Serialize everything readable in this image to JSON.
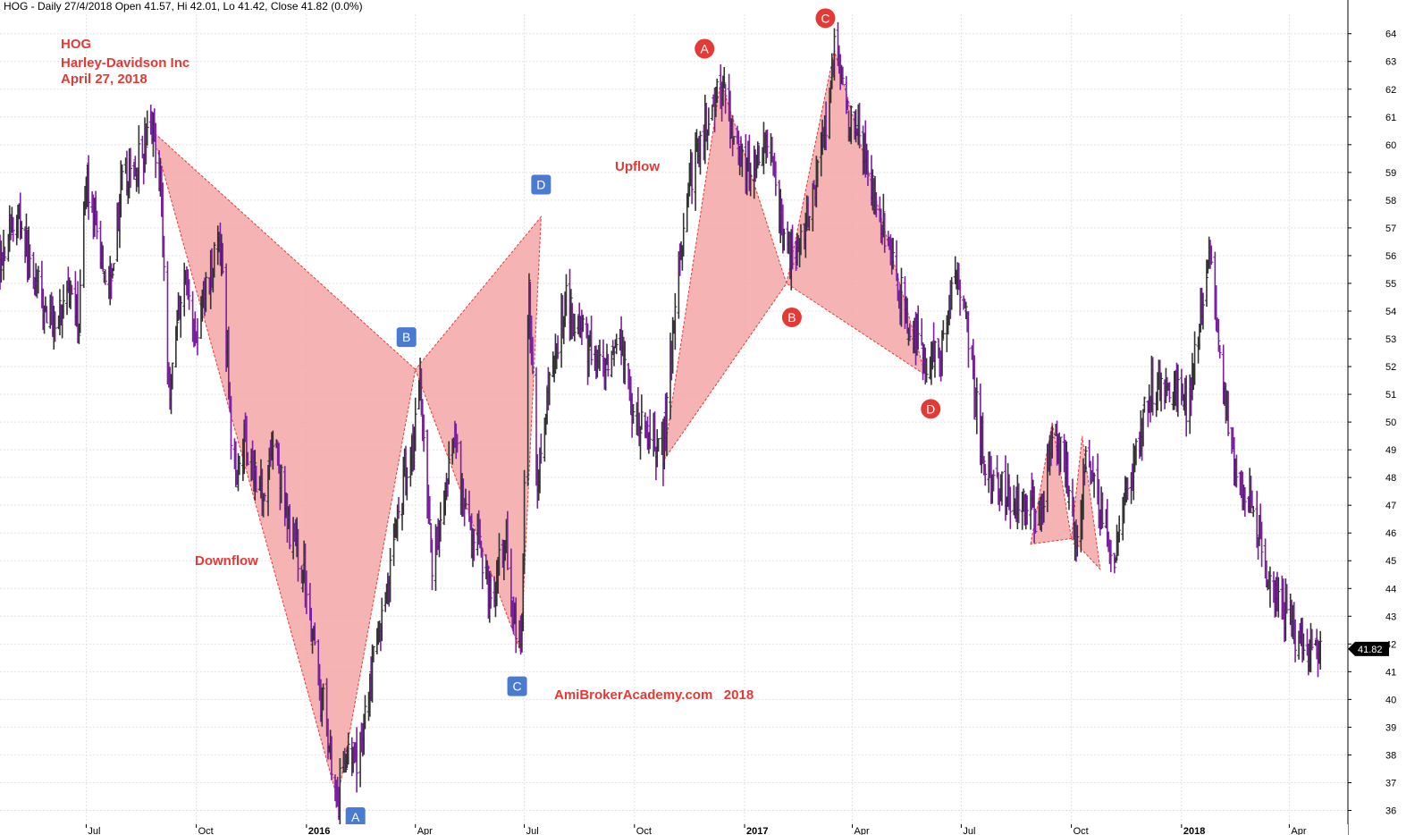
{
  "header": "HOG - Daily 27/4/2018 Open 41.57, Hi 42.01, Lo 41.42, Close 41.82 (0.0%)",
  "legend": {
    "symbol": "HOG",
    "company": "Harley-Davidson Inc",
    "date": "April 27, 2018"
  },
  "annotations": {
    "downflow": "Downflow",
    "upflow": "Upflow",
    "watermark": "AmiBrokerAcademy.com   2018"
  },
  "colors": {
    "price_bar": "#7b1fa2",
    "pattern_fill": "#f4a6a6",
    "pattern_edge": "#e53935",
    "label_blue": "#4a7bd1",
    "label_red": "#e53935",
    "text_red": "#e53935",
    "last_price_badge": "#000000"
  },
  "chart_data": {
    "type": "ohlc",
    "ylim": [
      35.5,
      64.7
    ],
    "y_ticks": [
      36,
      37,
      38,
      39,
      40,
      41,
      42,
      43,
      44,
      45,
      46,
      47,
      48,
      49,
      50,
      51,
      52,
      53,
      54,
      55,
      56,
      57,
      58,
      59,
      60,
      61,
      62,
      63,
      64
    ],
    "x_range": [
      "2015-04-20",
      "2018-05-20"
    ],
    "x_ticks": [
      {
        "date": "2015-07-01",
        "label": "Jul",
        "bold": false
      },
      {
        "date": "2015-10-01",
        "label": "Oct",
        "bold": false
      },
      {
        "date": "2016-01-01",
        "label": "2016",
        "bold": true
      },
      {
        "date": "2016-04-01",
        "label": "Apr",
        "bold": false
      },
      {
        "date": "2016-07-01",
        "label": "Jul",
        "bold": false
      },
      {
        "date": "2016-10-01",
        "label": "Oct",
        "bold": false
      },
      {
        "date": "2017-01-01",
        "label": "2017",
        "bold": true
      },
      {
        "date": "2017-04-01",
        "label": "Apr",
        "bold": false
      },
      {
        "date": "2017-07-01",
        "label": "Jul",
        "bold": false
      },
      {
        "date": "2017-10-01",
        "label": "Oct",
        "bold": false
      },
      {
        "date": "2018-01-01",
        "label": "2018",
        "bold": true
      },
      {
        "date": "2018-04-01",
        "label": "Apr",
        "bold": false
      }
    ],
    "last_price": "41.82",
    "price_path": [
      [
        "2015-04-20",
        56.0
      ],
      [
        "2015-05-05",
        57.5
      ],
      [
        "2015-05-20",
        55.0
      ],
      [
        "2015-06-01",
        53.5
      ],
      [
        "2015-06-15",
        54.5
      ],
      [
        "2015-06-25",
        53.5
      ],
      [
        "2015-07-01",
        59.0
      ],
      [
        "2015-07-10",
        56.5
      ],
      [
        "2015-07-20",
        55.0
      ],
      [
        "2015-07-31",
        58.5
      ],
      [
        "2015-08-15",
        59.5
      ],
      [
        "2015-08-25",
        60.6
      ],
      [
        "2015-09-01",
        59.0
      ],
      [
        "2015-09-08",
        51.0
      ],
      [
        "2015-09-20",
        55.5
      ],
      [
        "2015-10-01",
        53.0
      ],
      [
        "2015-10-10",
        55.0
      ],
      [
        "2015-10-20",
        56.5
      ],
      [
        "2015-10-25",
        54.0
      ],
      [
        "2015-11-01",
        48.0
      ],
      [
        "2015-11-10",
        49.5
      ],
      [
        "2015-11-25",
        47.5
      ],
      [
        "2015-12-05",
        49.5
      ],
      [
        "2015-12-15",
        46.5
      ],
      [
        "2015-12-31",
        44.5
      ],
      [
        "2016-01-10",
        41.0
      ],
      [
        "2016-01-20",
        38.5
      ],
      [
        "2016-01-27",
        36.4
      ],
      [
        "2016-02-05",
        38.5
      ],
      [
        "2016-02-11",
        37.5
      ],
      [
        "2016-02-25",
        41.0
      ],
      [
        "2016-03-10",
        44.5
      ],
      [
        "2016-03-20",
        47.5
      ],
      [
        "2016-03-31",
        49.5
      ],
      [
        "2016-04-05",
        51.5
      ],
      [
        "2016-04-15",
        45.0
      ],
      [
        "2016-04-25",
        47.0
      ],
      [
        "2016-05-05",
        49.5
      ],
      [
        "2016-05-12",
        46.5
      ],
      [
        "2016-05-25",
        45.5
      ],
      [
        "2016-06-05",
        43.5
      ],
      [
        "2016-06-15",
        46.0
      ],
      [
        "2016-06-24",
        42.5
      ],
      [
        "2016-06-28",
        41.7
      ],
      [
        "2016-07-05",
        54.5
      ],
      [
        "2016-07-12",
        48.0
      ],
      [
        "2016-07-25",
        52.0
      ],
      [
        "2016-08-05",
        54.5
      ],
      [
        "2016-08-20",
        53.0
      ],
      [
        "2016-09-05",
        51.5
      ],
      [
        "2016-09-20",
        52.5
      ],
      [
        "2016-10-01",
        50.0
      ],
      [
        "2016-10-25",
        49.0
      ],
      [
        "2016-11-08",
        56.0
      ],
      [
        "2016-11-20",
        59.5
      ],
      [
        "2016-12-05",
        61.5
      ],
      [
        "2016-12-12",
        62.2
      ],
      [
        "2016-12-25",
        60.0
      ],
      [
        "2017-01-05",
        59.0
      ],
      [
        "2017-01-20",
        60.0
      ],
      [
        "2017-01-31",
        57.5
      ],
      [
        "2017-02-10",
        55.5
      ],
      [
        "2017-02-20",
        57.0
      ],
      [
        "2017-03-01",
        58.5
      ],
      [
        "2017-03-10",
        61.0
      ],
      [
        "2017-03-17",
        63.4
      ],
      [
        "2017-03-25",
        61.5
      ],
      [
        "2017-04-05",
        60.5
      ],
      [
        "2017-04-12",
        59.5
      ],
      [
        "2017-04-25",
        57.5
      ],
      [
        "2017-05-05",
        55.5
      ],
      [
        "2017-05-20",
        53.5
      ],
      [
        "2017-06-05",
        52.0
      ],
      [
        "2017-06-15",
        52.5
      ],
      [
        "2017-06-25",
        55.5
      ],
      [
        "2017-07-05",
        54.0
      ],
      [
        "2017-07-15",
        50.0
      ],
      [
        "2017-07-25",
        48.0
      ],
      [
        "2017-08-10",
        47.5
      ],
      [
        "2017-08-25",
        47.0
      ],
      [
        "2017-09-05",
        46.5
      ],
      [
        "2017-09-15",
        49.5
      ],
      [
        "2017-09-25",
        48.5
      ],
      [
        "2017-10-05",
        46.0
      ],
      [
        "2017-10-15",
        49.0
      ],
      [
        "2017-10-25",
        47.0
      ],
      [
        "2017-11-05",
        45.0
      ],
      [
        "2017-11-20",
        48.0
      ],
      [
        "2017-12-05",
        51.0
      ],
      [
        "2017-12-20",
        51.5
      ],
      [
        "2018-01-05",
        50.5
      ],
      [
        "2018-01-15",
        53.0
      ],
      [
        "2018-01-25",
        56.2
      ],
      [
        "2018-02-05",
        51.0
      ],
      [
        "2018-02-15",
        48.0
      ],
      [
        "2018-03-01",
        47.0
      ],
      [
        "2018-03-15",
        44.0
      ],
      [
        "2018-04-01",
        43.0
      ],
      [
        "2018-04-10",
        42.0
      ],
      [
        "2018-04-20",
        41.5
      ],
      [
        "2018-04-27",
        41.82
      ]
    ],
    "patterns": [
      {
        "name": "downflow",
        "points": [
          [
            "2015-08-25",
            60.5
          ],
          [
            "2016-01-27",
            36.4
          ],
          [
            "2016-04-01",
            51.9
          ],
          [
            "2016-06-28",
            41.7
          ],
          [
            "2016-07-15",
            57.4
          ]
        ],
        "labels": [
          "",
          "A",
          "B",
          "C",
          "D"
        ],
        "label_style": "square"
      },
      {
        "name": "upflow",
        "points": [
          [
            "2016-10-25",
            48.6
          ],
          [
            "2016-12-12",
            62.3
          ],
          [
            "2017-02-05",
            55.0
          ],
          [
            "2017-03-17",
            63.4
          ],
          [
            "2017-06-01",
            51.7
          ]
        ],
        "labels": [
          "",
          "A",
          "B",
          "C",
          "D"
        ],
        "label_style": "circle"
      },
      {
        "name": "small",
        "points": [
          [
            "2017-08-28",
            45.6
          ],
          [
            "2017-09-15",
            50.0
          ],
          [
            "2017-10-01",
            45.8
          ],
          [
            "2017-10-10",
            49.5
          ],
          [
            "2017-10-25",
            44.7
          ]
        ],
        "labels": [
          "",
          "",
          "",
          "",
          ""
        ],
        "label_style": "none"
      }
    ]
  }
}
